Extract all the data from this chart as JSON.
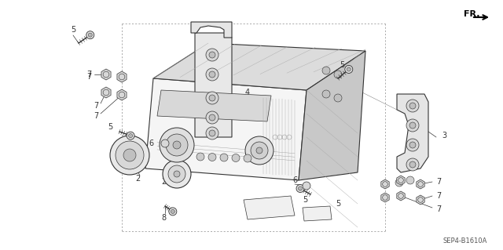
{
  "bg_color": "#ffffff",
  "diagram_code": "SEP4-B1610A",
  "line_color": "#333333",
  "gray_fill": "#e8e8e8",
  "dark_gray": "#bbbbbb",
  "light_gray": "#f0f0f0"
}
